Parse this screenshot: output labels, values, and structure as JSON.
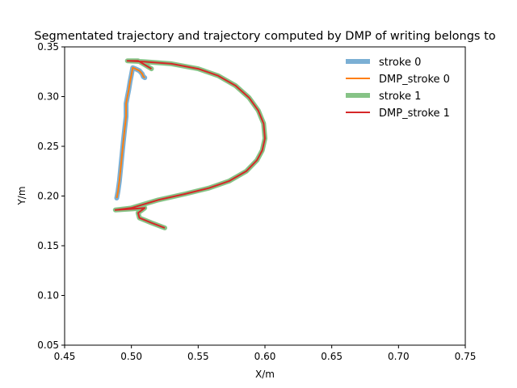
{
  "chart_data": {
    "type": "line",
    "title": "Segmentated trajectory and trajectory computed by DMP of writing belongs to",
    "xlabel": "X/m",
    "ylabel": "Y/m",
    "xlim": [
      0.45,
      0.75
    ],
    "ylim": [
      0.05,
      0.35
    ],
    "xticks": [
      "0.45",
      "0.50",
      "0.55",
      "0.60",
      "0.65",
      "0.70",
      "0.75"
    ],
    "yticks": [
      "0.05",
      "0.10",
      "0.15",
      "0.20",
      "0.25",
      "0.30",
      "0.35"
    ],
    "grid": false,
    "legend_position": "top-right",
    "series": [
      {
        "name": "stroke 0",
        "color": "#7bafd4",
        "style": "thick",
        "x": [
          0.489,
          0.49,
          0.491,
          0.492,
          0.493,
          0.494,
          0.495,
          0.496,
          0.496,
          0.497,
          0.498,
          0.499,
          0.5,
          0.501,
          0.503,
          0.506,
          0.508,
          0.509,
          0.51
        ],
        "y": [
          0.198,
          0.205,
          0.215,
          0.228,
          0.242,
          0.255,
          0.268,
          0.28,
          0.293,
          0.3,
          0.307,
          0.315,
          0.322,
          0.329,
          0.328,
          0.326,
          0.323,
          0.32,
          0.319
        ]
      },
      {
        "name": "DMP_stroke 0",
        "color": "#ff7f0e",
        "style": "thin",
        "x": [
          0.489,
          0.49,
          0.491,
          0.492,
          0.493,
          0.494,
          0.495,
          0.496,
          0.496,
          0.497,
          0.498,
          0.499,
          0.5,
          0.501,
          0.503,
          0.506,
          0.508,
          0.509,
          0.51
        ],
        "y": [
          0.198,
          0.205,
          0.215,
          0.228,
          0.242,
          0.255,
          0.268,
          0.28,
          0.293,
          0.3,
          0.307,
          0.315,
          0.322,
          0.329,
          0.328,
          0.326,
          0.323,
          0.32,
          0.319
        ]
      },
      {
        "name": "stroke 1",
        "color": "#86c386",
        "style": "thick",
        "x": [
          0.515,
          0.51,
          0.505,
          0.499,
          0.497,
          0.51,
          0.53,
          0.55,
          0.565,
          0.578,
          0.588,
          0.595,
          0.599,
          0.6,
          0.598,
          0.594,
          0.586,
          0.573,
          0.558,
          0.54,
          0.52,
          0.5,
          0.488,
          0.5,
          0.51,
          0.505,
          0.506,
          0.515,
          0.525
        ],
        "y": [
          0.328,
          0.332,
          0.336,
          0.336,
          0.336,
          0.335,
          0.333,
          0.328,
          0.321,
          0.311,
          0.299,
          0.286,
          0.273,
          0.258,
          0.246,
          0.236,
          0.225,
          0.215,
          0.208,
          0.202,
          0.196,
          0.188,
          0.186,
          0.187,
          0.188,
          0.183,
          0.178,
          0.173,
          0.168
        ]
      },
      {
        "name": "DMP_stroke 1",
        "color": "#d62728",
        "style": "thin",
        "x": [
          0.515,
          0.51,
          0.505,
          0.499,
          0.497,
          0.51,
          0.53,
          0.55,
          0.565,
          0.578,
          0.588,
          0.595,
          0.599,
          0.6,
          0.598,
          0.594,
          0.586,
          0.573,
          0.558,
          0.54,
          0.52,
          0.5,
          0.488,
          0.5,
          0.51,
          0.505,
          0.506,
          0.515,
          0.525
        ],
        "y": [
          0.328,
          0.332,
          0.336,
          0.336,
          0.336,
          0.335,
          0.333,
          0.328,
          0.321,
          0.311,
          0.299,
          0.286,
          0.273,
          0.258,
          0.246,
          0.236,
          0.225,
          0.215,
          0.208,
          0.202,
          0.196,
          0.188,
          0.186,
          0.187,
          0.188,
          0.183,
          0.178,
          0.173,
          0.168
        ]
      }
    ]
  }
}
